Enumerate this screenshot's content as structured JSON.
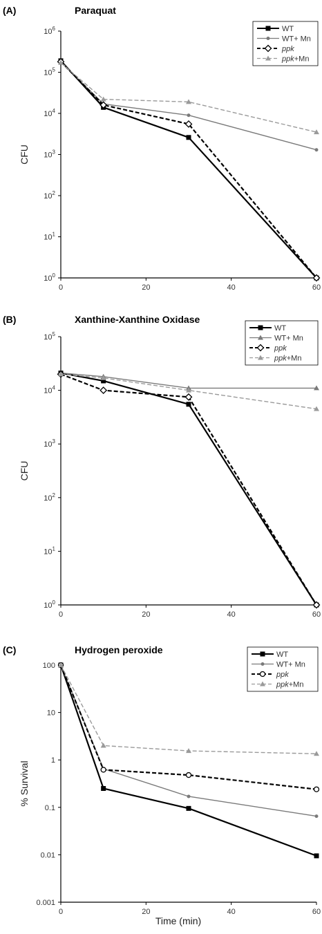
{
  "chart_data": [
    {
      "type": "line",
      "panel_label": "(A)",
      "title": "Paraquat",
      "ylabel": "CFU",
      "xlabel": "",
      "y_scale": "log",
      "ylim": [
        1,
        1000000
      ],
      "xlim": [
        0,
        60
      ],
      "x_ticks": [
        "0",
        "20",
        "40",
        "60"
      ],
      "y_ticks": [
        {
          "base": "10",
          "exp": "0"
        },
        {
          "base": "10",
          "exp": "1"
        },
        {
          "base": "10",
          "exp": "2"
        },
        {
          "base": "10",
          "exp": "3"
        },
        {
          "base": "10",
          "exp": "4"
        },
        {
          "base": "10",
          "exp": "5"
        },
        {
          "base": "10",
          "exp": "6"
        }
      ],
      "legend_position": "top-right",
      "x": [
        0,
        10,
        30,
        60
      ],
      "series": [
        {
          "name": "WT",
          "name_parts": [
            {
              "text": "WT",
              "italic": false
            }
          ],
          "values": [
            190000,
            14000,
            2600,
            1
          ],
          "color": "#000000",
          "dash": "solid",
          "marker": "square-filled"
        },
        {
          "name": "WT+ Mn",
          "name_parts": [
            {
              "text": "WT+ Mn",
              "italic": false
            }
          ],
          "values": [
            180000,
            17000,
            9000,
            1300
          ],
          "color": "#7a7a7a",
          "dash": "solid",
          "marker": "dot"
        },
        {
          "name": "ppk",
          "name_parts": [
            {
              "text": "ppk",
              "italic": true
            }
          ],
          "values": [
            180000,
            16000,
            5500,
            1
          ],
          "color": "#000000",
          "dash": "dashed",
          "marker": "diamond-open"
        },
        {
          "name": "ppk+Mn",
          "name_parts": [
            {
              "text": "ppk",
              "italic": true
            },
            {
              "text": "+Mn",
              "italic": false
            }
          ],
          "values": [
            170000,
            22000,
            19000,
            3500
          ],
          "color": "#9a9a9a",
          "dash": "dashed",
          "marker": "triangle"
        }
      ]
    },
    {
      "type": "line",
      "panel_label": "(B)",
      "title": "Xanthine-Xanthine Oxidase",
      "ylabel": "CFU",
      "xlabel": "",
      "y_scale": "log",
      "ylim": [
        1,
        100000
      ],
      "xlim": [
        0,
        60
      ],
      "x_ticks": [
        "0",
        "20",
        "40",
        "60"
      ],
      "y_ticks": [
        {
          "base": "10",
          "exp": "0"
        },
        {
          "base": "10",
          "exp": "1"
        },
        {
          "base": "10",
          "exp": "2"
        },
        {
          "base": "10",
          "exp": "3"
        },
        {
          "base": "10",
          "exp": "4"
        },
        {
          "base": "10",
          "exp": "5"
        }
      ],
      "legend_position": "top-right",
      "x": [
        0,
        10,
        30,
        60
      ],
      "series": [
        {
          "name": "WT",
          "name_parts": [
            {
              "text": "WT",
              "italic": false
            }
          ],
          "values": [
            21000,
            15000,
            5500,
            1
          ],
          "color": "#000000",
          "dash": "solid",
          "marker": "square-filled"
        },
        {
          "name": "WT+ Mn",
          "name_parts": [
            {
              "text": "WT+ Mn",
              "italic": false
            }
          ],
          "values": [
            21000,
            18000,
            11000,
            11000
          ],
          "color": "#7a7a7a",
          "dash": "solid",
          "marker": "triangle"
        },
        {
          "name": "ppk",
          "name_parts": [
            {
              "text": "ppk",
              "italic": true
            }
          ],
          "values": [
            20000,
            10000,
            7500,
            1
          ],
          "color": "#000000",
          "dash": "dashed",
          "marker": "diamond-open"
        },
        {
          "name": "ppk+Mn",
          "name_parts": [
            {
              "text": "ppk",
              "italic": true
            },
            {
              "text": "+Mn",
              "italic": false
            }
          ],
          "values": [
            20000,
            17000,
            10000,
            4500
          ],
          "color": "#9a9a9a",
          "dash": "dashed",
          "marker": "triangle"
        }
      ]
    },
    {
      "type": "line",
      "panel_label": "(C)",
      "title": "Hydrogen peroxide",
      "ylabel": "% Survival",
      "xlabel": "Time (min)",
      "y_scale": "log",
      "ylim": [
        0.001,
        100
      ],
      "xlim": [
        0,
        60
      ],
      "x_ticks": [
        "0",
        "20",
        "40",
        "60"
      ],
      "y_ticks": [
        {
          "base": "0.001",
          "exp": ""
        },
        {
          "base": "0.01",
          "exp": ""
        },
        {
          "base": "0.1",
          "exp": ""
        },
        {
          "base": "1",
          "exp": ""
        },
        {
          "base": "10",
          "exp": ""
        },
        {
          "base": "100",
          "exp": ""
        }
      ],
      "legend_position": "top-right",
      "x": [
        0,
        10,
        30,
        60
      ],
      "series": [
        {
          "name": "WT",
          "name_parts": [
            {
              "text": "WT",
              "italic": false
            }
          ],
          "values": [
            100,
            0.25,
            0.095,
            0.0095
          ],
          "color": "#000000",
          "dash": "solid",
          "marker": "square-filled"
        },
        {
          "name": "WT+ Mn",
          "name_parts": [
            {
              "text": "WT+ Mn",
              "italic": false
            }
          ],
          "values": [
            100,
            0.65,
            0.17,
            0.065
          ],
          "color": "#7a7a7a",
          "dash": "solid",
          "marker": "dot"
        },
        {
          "name": "ppk",
          "name_parts": [
            {
              "text": "ppk",
              "italic": true
            }
          ],
          "values": [
            100,
            0.62,
            0.48,
            0.24
          ],
          "color": "#000000",
          "dash": "dashed",
          "marker": "circle-open"
        },
        {
          "name": "ppk+Mn",
          "name_parts": [
            {
              "text": "ppk",
              "italic": true
            },
            {
              "text": "+Mn",
              "italic": false
            }
          ],
          "values": [
            100,
            2.0,
            1.55,
            1.35
          ],
          "color": "#9a9a9a",
          "dash": "dashed",
          "marker": "triangle"
        }
      ]
    }
  ]
}
